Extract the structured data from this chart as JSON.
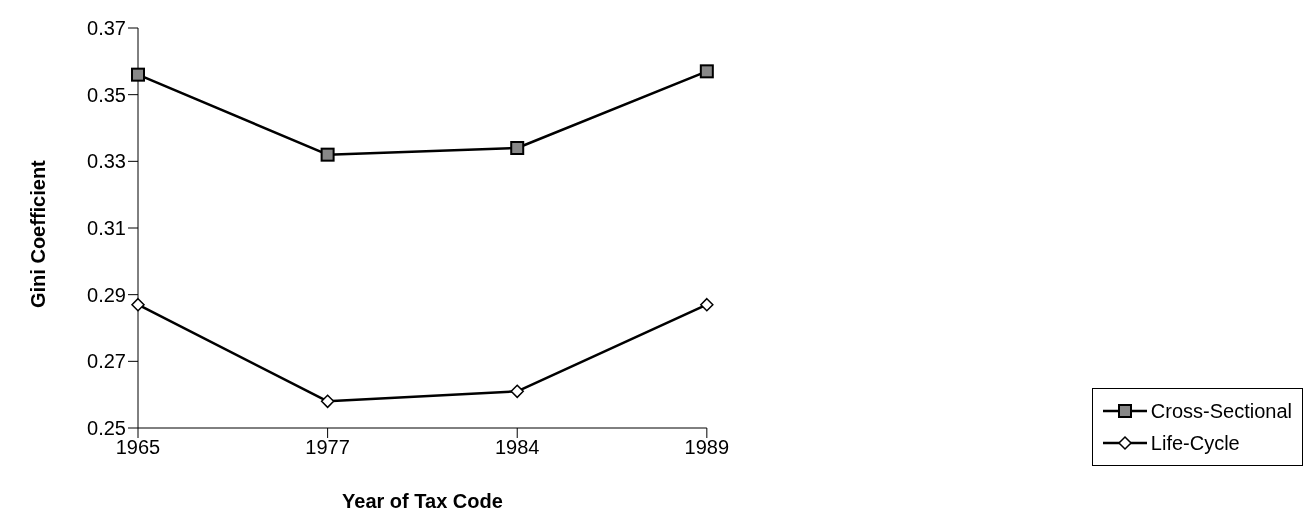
{
  "chart_data": {
    "type": "line",
    "xlabel": "Year of Tax Code",
    "ylabel": "Gini Coefficient",
    "categories": [
      "1965",
      "1977",
      "1984",
      "1989"
    ],
    "series": [
      {
        "name": "Cross-Sectional",
        "color": "#000000",
        "marker": "square",
        "values": [
          0.356,
          0.332,
          0.334,
          0.357
        ]
      },
      {
        "name": "Life-Cycle",
        "color": "#000000",
        "marker": "diamond",
        "values": [
          0.287,
          0.258,
          0.261,
          0.287
        ]
      }
    ],
    "ylim": [
      0.25,
      0.37
    ],
    "yticks": [
      0.25,
      0.27,
      0.29,
      0.31,
      0.33,
      0.35,
      0.37
    ],
    "grid": false,
    "legend": "right",
    "line_style": "solid"
  }
}
